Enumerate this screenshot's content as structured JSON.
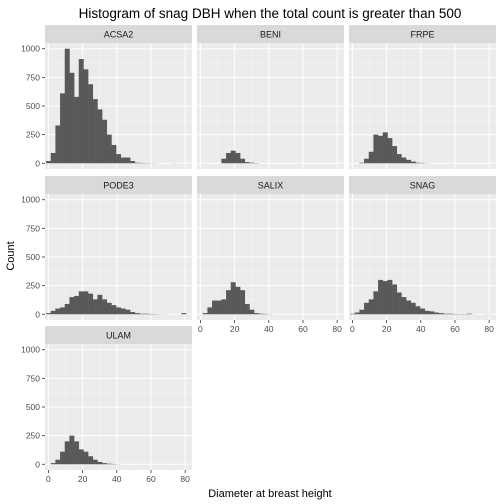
{
  "chart_data": {
    "type": "bar",
    "title": "Histogram of snag DBH when the total count is greater than 500",
    "xlabel": "Diameter at breast height",
    "ylabel": "Count",
    "xlim": [
      -2,
      84
    ],
    "ylim": [
      -50,
      1050
    ],
    "x_ticks": [
      0,
      20,
      40,
      60,
      80
    ],
    "y_ticks": [
      0,
      250,
      500,
      750,
      1000
    ],
    "bin_width": 2.73,
    "bin_start": -1.37,
    "grid": true,
    "panel_background": "#ebebeb",
    "strip_background": "#d9d9d9",
    "bar_color": "#595959",
    "panels": [
      {
        "name": "ACSA2",
        "values": [
          20,
          90,
          330,
          610,
          1000,
          790,
          580,
          910,
          820,
          690,
          560,
          470,
          380,
          250,
          160,
          80,
          50,
          50,
          20,
          5,
          3,
          2,
          1,
          1,
          0,
          0,
          0,
          1,
          0,
          0
        ]
      },
      {
        "name": "BENI",
        "values": [
          0,
          0,
          0,
          0,
          0,
          40,
          90,
          110,
          90,
          40,
          10,
          5,
          2,
          0,
          0,
          0,
          0,
          0,
          0,
          0,
          0,
          0,
          0,
          0,
          0,
          0,
          0,
          0,
          0,
          0
        ]
      },
      {
        "name": "FRPE",
        "values": [
          0,
          0,
          5,
          40,
          100,
          250,
          240,
          270,
          220,
          150,
          80,
          50,
          30,
          15,
          5,
          3,
          1,
          0,
          0,
          0,
          0,
          0,
          0,
          0,
          0,
          0,
          0,
          0,
          0,
          0
        ]
      },
      {
        "name": "PODE3",
        "values": [
          10,
          30,
          50,
          60,
          90,
          150,
          160,
          200,
          200,
          180,
          130,
          170,
          130,
          100,
          80,
          60,
          50,
          40,
          20,
          10,
          5,
          5,
          3,
          2,
          1,
          1,
          0,
          0,
          0,
          10
        ]
      },
      {
        "name": "SALIX",
        "values": [
          0,
          10,
          60,
          120,
          120,
          130,
          210,
          280,
          240,
          210,
          90,
          40,
          10,
          5,
          3,
          1,
          0,
          0,
          0,
          0,
          0,
          0,
          0,
          0,
          0,
          0,
          0,
          0,
          0,
          0
        ]
      },
      {
        "name": "SNAG",
        "values": [
          5,
          15,
          40,
          100,
          130,
          200,
          300,
          290,
          300,
          260,
          190,
          150,
          120,
          100,
          70,
          50,
          30,
          25,
          15,
          10,
          5,
          5,
          3,
          2,
          2,
          5,
          1,
          0,
          0,
          1
        ]
      },
      {
        "name": "ULAM",
        "values": [
          0,
          10,
          40,
          110,
          200,
          250,
          200,
          130,
          110,
          70,
          40,
          20,
          10,
          5,
          3,
          1,
          0,
          0,
          0,
          0,
          0,
          0,
          0,
          0,
          0,
          0,
          0,
          0,
          0,
          0
        ]
      }
    ]
  }
}
